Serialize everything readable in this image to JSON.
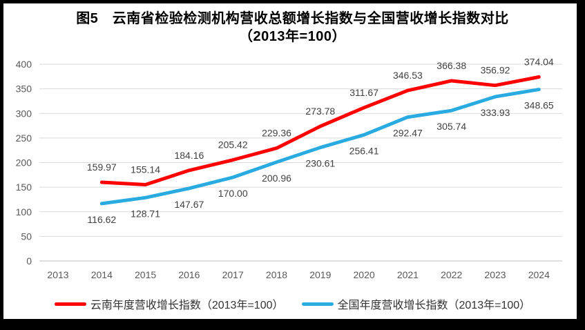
{
  "title": {
    "line1": "图5　云南省检验检测机构营收总额增长指数与全国营收增长指数对比",
    "line2": "（2013年=100）"
  },
  "chart_data": {
    "type": "line",
    "categories": [
      "2013",
      "2014",
      "2015",
      "2016",
      "2017",
      "2018",
      "2019",
      "2020",
      "2021",
      "2022",
      "2023",
      "2024"
    ],
    "yticks": [
      0,
      50,
      100,
      150,
      200,
      250,
      300,
      350,
      400
    ],
    "ylim": [
      0,
      400
    ],
    "grid": true,
    "legend_position": "bottom",
    "series": [
      {
        "name": "云南年度营收增长指数（2013年=100）",
        "color": "#FF0000",
        "start_index": 1,
        "values": [
          159.97,
          155.14,
          184.16,
          205.42,
          229.36,
          273.78,
          311.67,
          346.53,
          366.38,
          356.92,
          374.04
        ],
        "labels": [
          "159.97",
          "155.14",
          "184.16",
          "205.42",
          "229.36",
          "273.78",
          "311.67",
          "346.53",
          "366.38",
          "356.92",
          "374.04"
        ],
        "label_position": "above"
      },
      {
        "name": "全国年度营收增长指数（2013年=100）",
        "color": "#29ABE2",
        "start_index": 1,
        "values": [
          116.62,
          128.71,
          147.67,
          170.0,
          200.96,
          230.61,
          256.41,
          292.47,
          305.74,
          333.93,
          348.65
        ],
        "labels": [
          "116.62",
          "128.71",
          "147.67",
          "170.00",
          "200.96",
          "230.61",
          "256.41",
          "292.47",
          "305.74",
          "333.93",
          "348.65"
        ],
        "label_position": "below"
      }
    ],
    "colors": {
      "gridline": "#D9D9D9",
      "axis_line": "#BFBFBF",
      "axis_text": "#595959",
      "data_label": "#404040",
      "title_text": "#000000"
    }
  }
}
